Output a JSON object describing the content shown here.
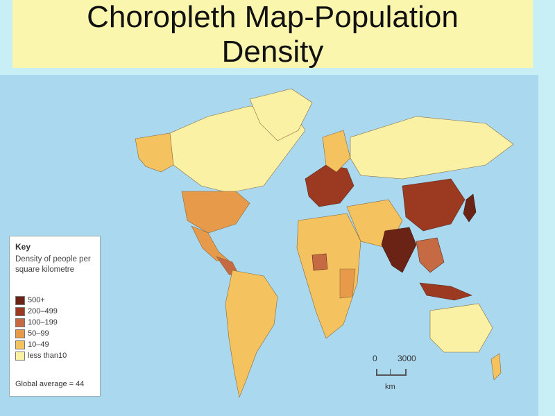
{
  "slide": {
    "title_line1": "Choropleth Map-Population",
    "title_line2": "Density"
  },
  "key": {
    "heading": "Key",
    "subtitle": "Density of people per square kilometre",
    "classes": [
      {
        "label": "500+",
        "color": "#6a2314"
      },
      {
        "label": "200–499",
        "color": "#9b3a20"
      },
      {
        "label": "100–199",
        "color": "#c56a43"
      },
      {
        "label": "50–99",
        "color": "#e79a4a"
      },
      {
        "label": "10–49",
        "color": "#f4c25e"
      },
      {
        "label": "less than10",
        "color": "#fbf1a4"
      }
    ],
    "global_average": "Global average = 44"
  },
  "scale": {
    "start": "0",
    "end": "3000",
    "unit": "km"
  },
  "colors": {
    "ocean": "#a9d8ef",
    "title_band": "#fbf6ad",
    "page_background": "#c8eef6"
  }
}
